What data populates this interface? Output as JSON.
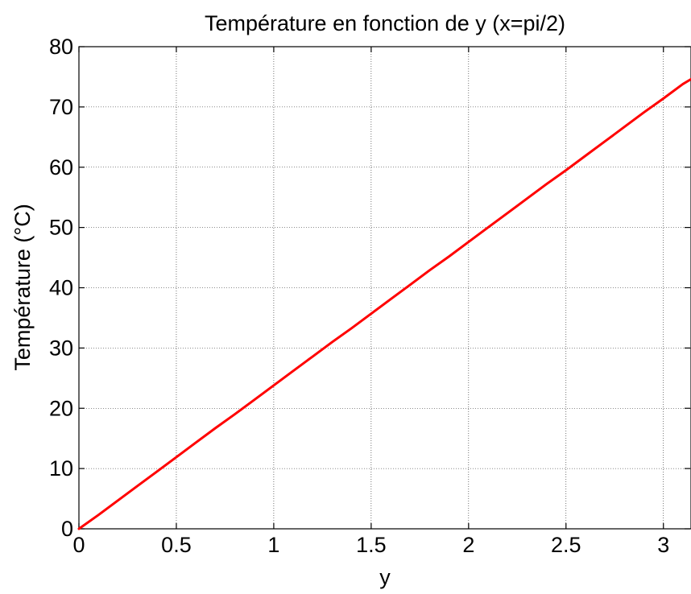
{
  "chart_data": {
    "type": "line",
    "title": "Température en fonction de y  (x=pi/2)",
    "xlabel": "y",
    "ylabel": "Température (°C)",
    "xlim": [
      0,
      3.14159
    ],
    "ylim": [
      0,
      80
    ],
    "xticks": [
      0,
      0.5,
      1,
      1.5,
      2,
      2.5,
      3
    ],
    "xtick_labels": [
      "0",
      "0.5",
      "1",
      "1.5",
      "2",
      "2.5",
      "3"
    ],
    "yticks": [
      0,
      10,
      20,
      30,
      40,
      50,
      60,
      70,
      80
    ],
    "ytick_labels": [
      "0",
      "10",
      "20",
      "30",
      "40",
      "50",
      "60",
      "70",
      "80"
    ],
    "grid": true,
    "legend": "none",
    "series": [
      {
        "color": "#ff0000",
        "x": [
          0,
          0.1,
          0.2,
          0.3,
          0.4,
          0.5,
          0.6,
          0.7,
          0.8,
          0.9,
          1.0,
          1.1,
          1.2,
          1.3,
          1.4,
          1.5,
          1.6,
          1.7,
          1.8,
          1.9,
          2.0,
          2.1,
          2.2,
          2.3,
          2.4,
          2.5,
          2.6,
          2.7,
          2.8,
          2.9,
          3.0,
          3.1,
          3.14159
        ],
        "y": [
          0,
          2.3,
          4.7,
          7.1,
          9.5,
          11.9,
          14.3,
          16.7,
          19.0,
          21.4,
          23.8,
          26.2,
          28.6,
          31.0,
          33.3,
          35.7,
          38.1,
          40.5,
          42.9,
          45.2,
          47.6,
          50.0,
          52.4,
          54.8,
          57.2,
          59.5,
          61.9,
          64.3,
          66.7,
          69.1,
          71.4,
          73.8,
          74.6
        ]
      }
    ]
  }
}
